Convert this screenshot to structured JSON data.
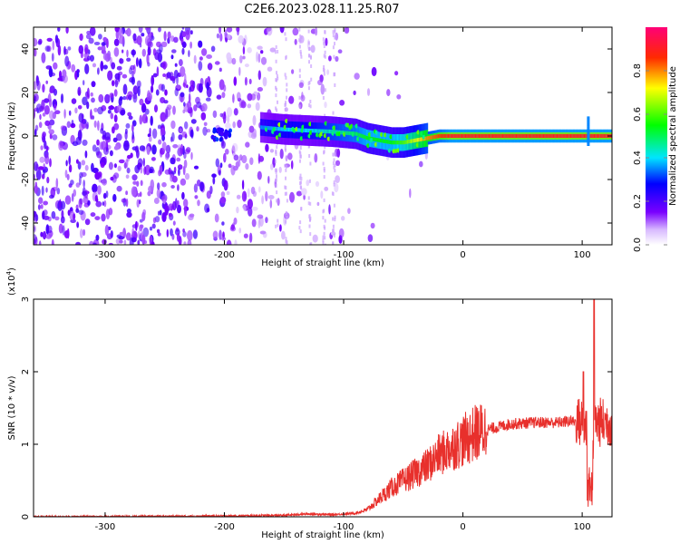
{
  "figure": {
    "title": "C2E6.2023.028.11.25.R07"
  },
  "chart_data": [
    {
      "type": "heatmap",
      "title": "",
      "xlabel": "Height of straight line (km)",
      "ylabel": "Frequency (Hz)",
      "xlim": [
        -360,
        125
      ],
      "ylim": [
        -50,
        50
      ],
      "x_ticks": [
        -300,
        -200,
        -100,
        0,
        100
      ],
      "y_ticks": [
        -40,
        -20,
        0,
        20,
        40
      ],
      "color_scale": "rainbow",
      "colorbar": {
        "label": "Normalized spectral amplitude",
        "ticks": [
          "0.0",
          "0.2",
          "0.4",
          "0.6",
          "0.8"
        ],
        "range": [
          0,
          1
        ]
      },
      "ridge": {
        "x": [
          -170,
          -150,
          -130,
          -110,
          -90,
          -80,
          -70,
          -60,
          -50,
          -40,
          -30,
          -20,
          -10,
          0,
          20,
          40,
          60,
          80,
          100,
          110,
          125
        ],
        "y": [
          4,
          3,
          2.5,
          2,
          1,
          -1,
          -2,
          -3,
          -3,
          -2,
          -1,
          0,
          0,
          0,
          0,
          0,
          0,
          0,
          0,
          0,
          0
        ],
        "amplitude": [
          0.35,
          0.4,
          0.4,
          0.45,
          0.5,
          0.55,
          0.55,
          0.55,
          0.6,
          0.7,
          0.8,
          0.85,
          0.9,
          0.9,
          0.9,
          0.9,
          0.9,
          0.9,
          0.9,
          0.9,
          0.9
        ]
      }
    },
    {
      "type": "line",
      "title": "",
      "xlabel": "Height of straight line (km)",
      "ylabel": "SNR (10 * v/v)",
      "y_multiplier": "(x10",
      "y_multiplier_exp": "4",
      "y_multiplier_close": ")",
      "xlim": [
        -360,
        125
      ],
      "ylim": [
        0,
        3
      ],
      "x_ticks": [
        -300,
        -200,
        -100,
        0,
        100
      ],
      "y_ticks": [
        0,
        1,
        2,
        3
      ],
      "series": [
        {
          "color": "#e8302c",
          "x": [
            -360,
            -300,
            -200,
            -150,
            -130,
            -110,
            -100,
            -90,
            -80,
            -70,
            -60,
            -50,
            -40,
            -30,
            -20,
            -10,
            0,
            10,
            20,
            40,
            60,
            80,
            90,
            100,
            105,
            108,
            110,
            125
          ],
          "y": [
            0.0,
            0.0,
            0.01,
            0.02,
            0.04,
            0.03,
            0.04,
            0.05,
            0.1,
            0.25,
            0.4,
            0.5,
            0.6,
            0.7,
            0.85,
            0.95,
            1.05,
            1.15,
            1.2,
            1.28,
            1.3,
            1.3,
            1.32,
            1.3,
            1.2,
            0.2,
            1.3,
            1.3
          ]
        }
      ]
    }
  ]
}
